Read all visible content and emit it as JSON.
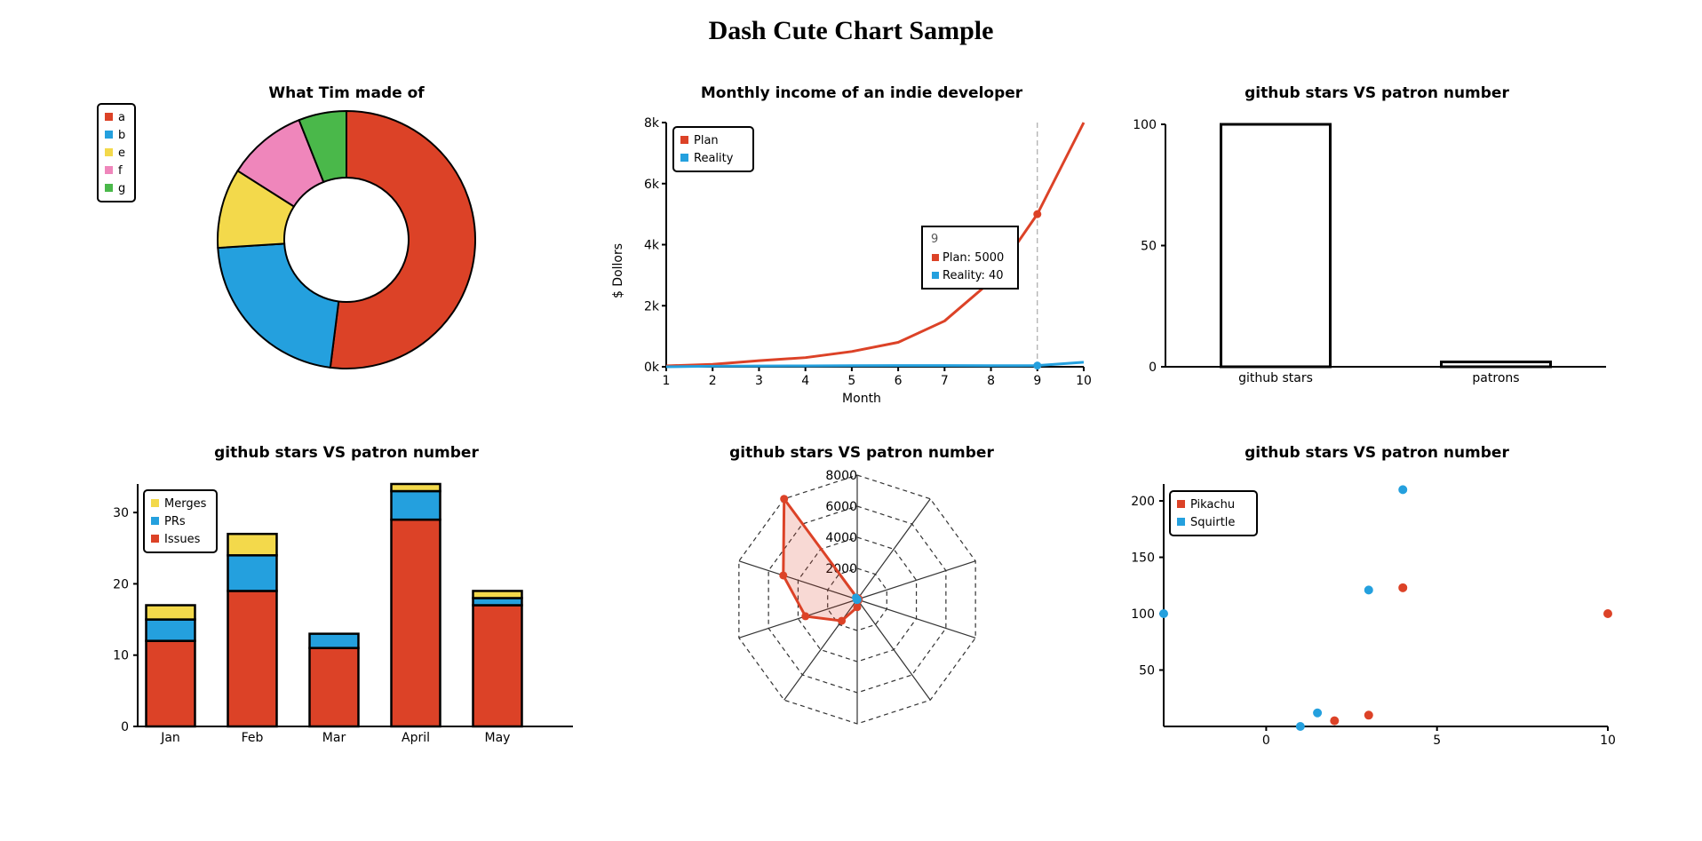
{
  "page": {
    "title": "Dash Cute Chart Sample"
  },
  "chart_data": [
    {
      "id": "donut",
      "type": "pie",
      "title": "What Tim made of",
      "labels": [
        "a",
        "b",
        "e",
        "f",
        "g"
      ],
      "values": [
        52,
        22,
        10,
        10,
        6
      ],
      "colors": [
        "#dc4227",
        "#24a0de",
        "#f3d94b",
        "#ef86bb",
        "#4ab84a"
      ],
      "legend": "top-left"
    },
    {
      "id": "income",
      "type": "line",
      "title": "Monthly income of an indie developer",
      "xlabel": "Month",
      "ylabel": "$ Dollors",
      "x": [
        1,
        2,
        3,
        4,
        5,
        6,
        7,
        8,
        9,
        10
      ],
      "xticks": [
        "1",
        "2",
        "3",
        "4",
        "5",
        "6",
        "7",
        "8",
        "9",
        "10"
      ],
      "yticks": [
        "0k",
        "2k",
        "4k",
        "6k",
        "8k"
      ],
      "ylim": [
        0,
        8000
      ],
      "series": [
        {
          "name": "Plan",
          "values": [
            30,
            80,
            200,
            300,
            500,
            800,
            1500,
            2800,
            5000,
            8000
          ],
          "color": "#dc4227"
        },
        {
          "name": "Reality",
          "values": [
            0,
            20,
            25,
            30,
            35,
            40,
            40,
            35,
            40,
            150
          ],
          "color": "#24a0de"
        }
      ],
      "tooltip": {
        "title": "9",
        "lines": [
          "Plan: 5000",
          "Reality: 40"
        ]
      },
      "legend": "top-left"
    },
    {
      "id": "stars-bar",
      "type": "bar",
      "title": "github stars VS patron number",
      "categories": [
        "github stars",
        "patrons"
      ],
      "values": [
        100,
        2
      ],
      "yticks": [
        "0",
        "50",
        "100"
      ],
      "ylim": [
        0,
        100
      ]
    },
    {
      "id": "stacked",
      "type": "bar",
      "title": "github stars VS patron number",
      "categories": [
        "Jan",
        "Feb",
        "Mar",
        "April",
        "May"
      ],
      "yticks": [
        "0",
        "10",
        "20",
        "30"
      ],
      "ylim": [
        0,
        34
      ],
      "series": [
        {
          "name": "Issues",
          "values": [
            12,
            19,
            11,
            29,
            17
          ],
          "color": "#dc4227"
        },
        {
          "name": "PRs",
          "values": [
            3,
            5,
            2,
            4,
            1
          ],
          "color": "#24a0de"
        },
        {
          "name": "Merges",
          "values": [
            2,
            3,
            0,
            1,
            1
          ],
          "color": "#f3d94b"
        }
      ],
      "legend_order": [
        "Merges",
        "PRs",
        "Issues"
      ],
      "legend": "top-left"
    },
    {
      "id": "radar",
      "type": "radar",
      "title": "github stars VS patron number",
      "rticks": [
        "2000",
        "4000",
        "6000",
        "8000"
      ],
      "rlim": [
        0,
        8000
      ],
      "axes": 10,
      "series": [
        {
          "values": [
            100,
            100,
            100,
            100,
            100,
            500,
            1700,
            3500,
            5000,
            8000
          ],
          "color": "#dc4227"
        },
        {
          "values": [
            10,
            15,
            20,
            25,
            30,
            35,
            40,
            35,
            40,
            150
          ],
          "color": "#24a0de"
        }
      ]
    },
    {
      "id": "scatter",
      "type": "scatter",
      "title": "github stars VS patron number",
      "xticks": [
        "0",
        "5",
        "10"
      ],
      "yticks": [
        "50",
        "100",
        "150",
        "200"
      ],
      "xlim": [
        -3,
        10
      ],
      "ylim": [
        0,
        215
      ],
      "series": [
        {
          "name": "Pikachu",
          "points": [
            [
              2,
              5
            ],
            [
              3,
              10
            ],
            [
              4,
              123
            ],
            [
              10,
              100
            ]
          ],
          "color": "#dc4227"
        },
        {
          "name": "Squirtle",
          "points": [
            [
              -3,
              100
            ],
            [
              1,
              0
            ],
            [
              1.5,
              12
            ],
            [
              3,
              121
            ],
            [
              4,
              210
            ]
          ],
          "color": "#24a0de"
        }
      ],
      "legend": "top-left"
    }
  ]
}
